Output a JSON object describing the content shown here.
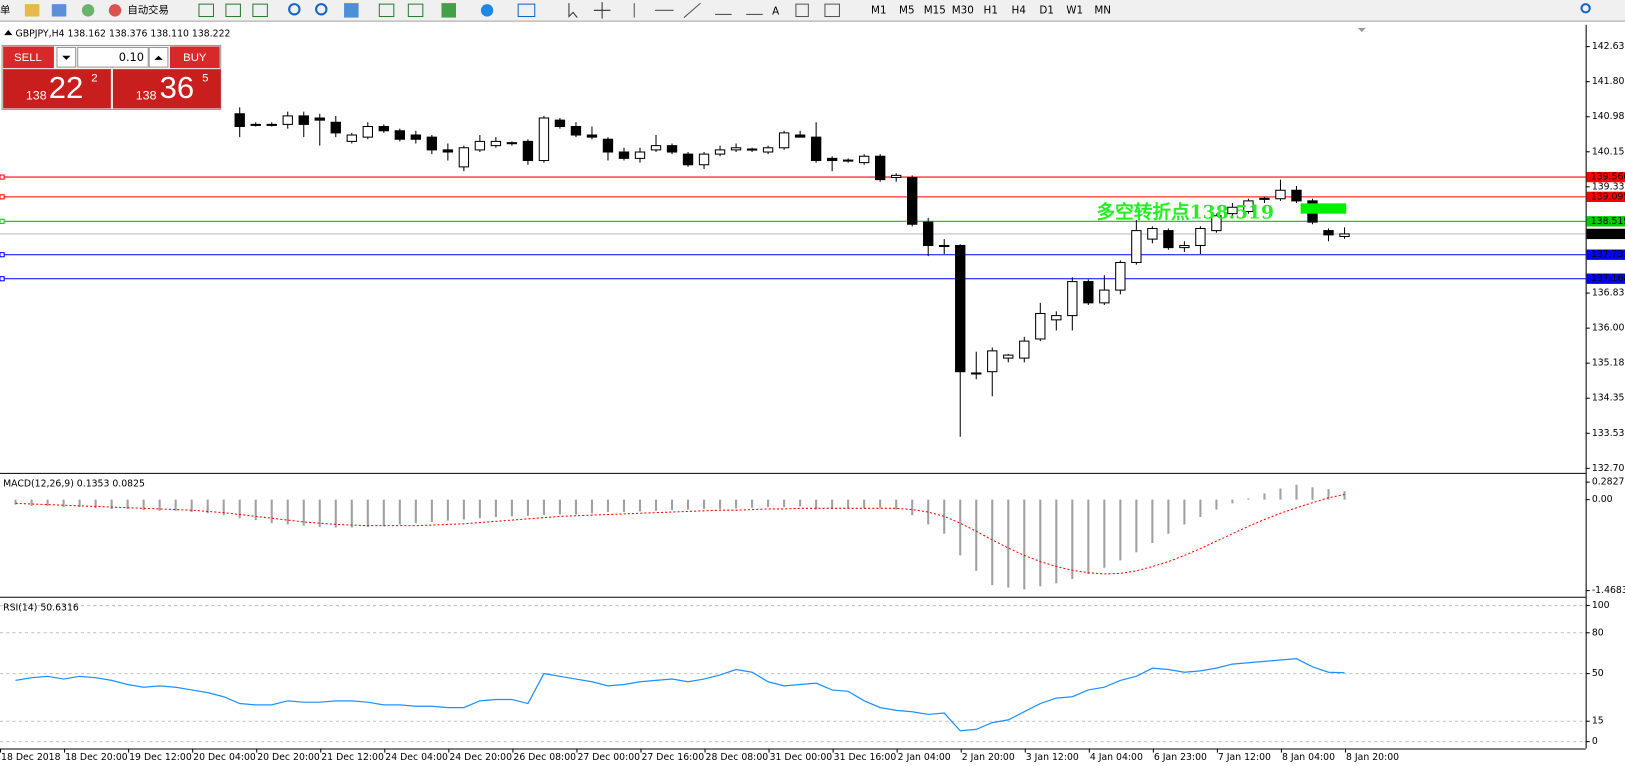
{
  "toolbar": {
    "items": [
      "单",
      "自动交易"
    ],
    "timeframes": [
      "M1",
      "M5",
      "M15",
      "M30",
      "H1",
      "H4",
      "D1",
      "W1",
      "MN"
    ]
  },
  "trade_panel": {
    "sell": "SELL",
    "buy": "BUY",
    "lots": "0.10",
    "sell_price": {
      "big": "138",
      "mid": "22",
      "small": "2"
    },
    "buy_price": {
      "big": "138",
      "mid": "36",
      "small": "5"
    }
  },
  "x_labels": [
    "18 Dec 2018",
    "18 Dec 20:00",
    "19 Dec 12:00",
    "20 Dec 04:00",
    "20 Dec 20:00",
    "21 Dec 12:00",
    "24 Dec 04:00",
    "24 Dec 20:00",
    "26 Dec 08:00",
    "27 Dec 00:00",
    "27 Dec 16:00",
    "28 Dec 08:00",
    "31 Dec 00:00",
    "31 Dec 16:00",
    "2 Jan 04:00",
    "2 Jan 20:00",
    "3 Jan 12:00",
    "4 Jan 04:00",
    "6 Jan 23:00",
    "7 Jan 12:00",
    "8 Jan 04:00",
    "8 Jan 20:00"
  ],
  "chart_data": [
    {
      "type": "candlestick",
      "title": "GBPJPY,H4  138.162 138.376 138.110 138.222",
      "ylim": [
        132.6,
        143.12
      ],
      "yticks": [
        {
          "value": 142.63,
          "label": "142.630"
        },
        141.805,
        {
          "value": 140.98,
          "label": "140.980"
        },
        140.155,
        {
          "value": 139.33,
          "label": "139.330"
        },
        {
          "value": 136.83,
          "label": "136.830"
        },
        136.005,
        {
          "value": 135.18,
          "label": "135.180"
        },
        134.355,
        {
          "value": 133.53,
          "label": "133.530"
        },
        132.705
      ],
      "lines": [
        {
          "value": 139.56,
          "label": "139.560",
          "color": "#ff0000"
        },
        {
          "value": 139.095,
          "label": "139.095",
          "color": "#ff0000"
        },
        {
          "value": 138.519,
          "label": "138.519",
          "color": "#00cc00"
        },
        {
          "value": 138.222,
          "label": "138.222",
          "color": "#000000"
        },
        {
          "value": 137.733,
          "label": "137.733",
          "color": "#0000ff"
        },
        {
          "value": 137.168,
          "label": "137.168",
          "color": "#0000ff"
        }
      ],
      "annotation": "多空转折点138.519",
      "candles": [
        null,
        null,
        null,
        null,
        null,
        null,
        null,
        null,
        null,
        null,
        null,
        null,
        null,
        null,
        [
          141.05,
          141.2,
          140.5,
          140.75
        ],
        [
          140.8,
          140.85,
          140.75,
          140.8
        ],
        [
          140.78,
          140.85,
          140.75,
          140.8
        ],
        [
          140.8,
          141.1,
          140.7,
          141.0
        ],
        [
          141.0,
          141.1,
          140.5,
          140.8
        ],
        [
          140.95,
          141.05,
          140.3,
          140.9
        ],
        [
          140.85,
          141.0,
          140.5,
          140.6
        ],
        [
          140.4,
          140.6,
          140.35,
          140.55
        ],
        [
          140.5,
          140.85,
          140.45,
          140.75
        ],
        [
          140.75,
          140.8,
          140.6,
          140.65
        ],
        [
          140.65,
          140.7,
          140.4,
          140.45
        ],
        [
          140.55,
          140.65,
          140.35,
          140.45
        ],
        [
          140.5,
          140.55,
          140.1,
          140.2
        ],
        [
          140.2,
          140.35,
          139.95,
          140.15
        ],
        [
          139.8,
          140.3,
          139.7,
          140.25
        ],
        [
          140.2,
          140.55,
          140.15,
          140.4
        ],
        [
          140.3,
          140.5,
          140.25,
          140.4
        ],
        [
          140.35,
          140.4,
          140.3,
          140.37
        ],
        [
          140.4,
          140.45,
          139.85,
          139.95
        ],
        [
          139.95,
          141.0,
          139.9,
          140.95
        ],
        [
          140.9,
          140.95,
          140.7,
          140.75
        ],
        [
          140.75,
          140.85,
          140.5,
          140.55
        ],
        [
          140.55,
          140.75,
          140.45,
          140.5
        ],
        [
          140.45,
          140.5,
          139.95,
          140.15
        ],
        [
          140.15,
          140.25,
          139.95,
          140.0
        ],
        [
          140.0,
          140.25,
          139.9,
          140.15
        ],
        [
          140.2,
          140.55,
          140.15,
          140.3
        ],
        [
          140.3,
          140.35,
          140.1,
          140.15
        ],
        [
          140.1,
          140.15,
          139.8,
          139.85
        ],
        [
          139.85,
          140.15,
          139.75,
          140.1
        ],
        [
          140.1,
          140.3,
          140.05,
          140.2
        ],
        [
          140.2,
          140.35,
          140.15,
          140.25
        ],
        [
          140.2,
          140.25,
          140.15,
          140.22
        ],
        [
          140.15,
          140.3,
          140.1,
          140.25
        ],
        [
          140.25,
          140.65,
          140.2,
          140.6
        ],
        [
          140.55,
          140.65,
          140.5,
          140.5
        ],
        [
          140.5,
          140.85,
          139.9,
          139.95
        ],
        [
          140.0,
          140.05,
          139.7,
          139.95
        ],
        [
          139.95,
          140.0,
          139.9,
          139.96
        ],
        [
          139.9,
          140.1,
          139.85,
          140.05
        ],
        [
          140.05,
          140.1,
          139.45,
          139.5
        ],
        [
          139.55,
          139.65,
          139.45,
          139.6
        ],
        [
          139.55,
          139.6,
          138.4,
          138.45
        ],
        [
          138.5,
          138.6,
          137.7,
          137.95
        ],
        [
          137.95,
          138.1,
          137.75,
          137.95
        ],
        [
          137.95,
          137.98,
          133.45,
          134.98
        ],
        [
          134.95,
          135.45,
          134.8,
          134.95
        ],
        [
          134.98,
          135.55,
          134.4,
          135.47
        ],
        [
          135.3,
          135.4,
          135.2,
          135.37
        ],
        [
          135.3,
          135.8,
          135.2,
          135.7
        ],
        [
          135.75,
          136.6,
          135.7,
          136.35
        ],
        [
          136.2,
          136.4,
          135.95,
          136.3
        ],
        [
          136.3,
          137.2,
          135.95,
          137.1
        ],
        [
          137.1,
          137.15,
          136.55,
          136.6
        ],
        [
          136.6,
          137.25,
          136.55,
          136.9
        ],
        [
          136.9,
          137.6,
          136.8,
          137.55
        ],
        [
          137.55,
          138.55,
          137.5,
          138.3
        ],
        [
          138.1,
          138.4,
          138.0,
          138.35
        ],
        [
          138.3,
          138.35,
          137.85,
          137.9
        ],
        [
          137.9,
          138.05,
          137.8,
          137.95
        ],
        [
          137.95,
          138.4,
          137.75,
          138.35
        ],
        [
          138.3,
          138.7,
          138.25,
          138.65
        ],
        [
          138.7,
          138.95,
          138.65,
          138.85
        ],
        [
          138.75,
          139.05,
          138.7,
          139.0
        ],
        [
          139.05,
          139.1,
          138.95,
          139.06
        ],
        [
          139.05,
          139.5,
          139.0,
          139.25
        ],
        [
          139.25,
          139.35,
          138.95,
          139.0
        ],
        [
          139.0,
          139.05,
          138.45,
          138.5
        ],
        [
          138.3,
          138.35,
          138.05,
          138.2
        ],
        [
          138.162,
          138.376,
          138.11,
          138.222
        ]
      ]
    },
    {
      "type": "macd",
      "title": "MACD(12,26,9) 0.1353 0.0825",
      "ylim": [
        -1.55,
        0.4
      ],
      "yticks": [
        0.2827,
        {
          "value": 0,
          "label": "0.00"
        },
        -1.4683
      ],
      "histogram_color": "#a0a0a0",
      "signal_color": "#ff0000",
      "histogram": [
        -0.08,
        -0.1,
        -0.1,
        -0.12,
        -0.12,
        -0.14,
        -0.15,
        -0.15,
        -0.17,
        -0.18,
        -0.18,
        -0.2,
        -0.22,
        -0.25,
        -0.3,
        -0.33,
        -0.38,
        -0.4,
        -0.42,
        -0.44,
        -0.45,
        -0.45,
        -0.44,
        -0.43,
        -0.4,
        -0.38,
        -0.36,
        -0.34,
        -0.32,
        -0.3,
        -0.28,
        -0.27,
        -0.26,
        -0.25,
        -0.24,
        -0.24,
        -0.22,
        -0.2,
        -0.2,
        -0.19,
        -0.18,
        -0.17,
        -0.16,
        -0.15,
        -0.15,
        -0.14,
        -0.13,
        -0.12,
        -0.12,
        -0.11,
        -0.16,
        -0.15,
        -0.14,
        -0.14,
        -0.13,
        -0.16,
        -0.25,
        -0.4,
        -0.55,
        -0.9,
        -1.15,
        -1.38,
        -1.42,
        -1.45,
        -1.4,
        -1.35,
        -1.28,
        -1.2,
        -1.1,
        -0.98,
        -0.85,
        -0.7,
        -0.55,
        -0.4,
        -0.28,
        -0.16,
        -0.06,
        0.02,
        0.1,
        0.18,
        0.24,
        0.2,
        0.17,
        0.1353
      ],
      "signal": [
        -0.06,
        -0.07,
        -0.08,
        -0.09,
        -0.1,
        -0.11,
        -0.12,
        -0.13,
        -0.14,
        -0.15,
        -0.16,
        -0.17,
        -0.19,
        -0.21,
        -0.24,
        -0.27,
        -0.3,
        -0.33,
        -0.36,
        -0.38,
        -0.4,
        -0.41,
        -0.42,
        -0.42,
        -0.42,
        -0.42,
        -0.41,
        -0.4,
        -0.39,
        -0.37,
        -0.35,
        -0.33,
        -0.31,
        -0.29,
        -0.27,
        -0.26,
        -0.25,
        -0.24,
        -0.23,
        -0.22,
        -0.21,
        -0.2,
        -0.19,
        -0.18,
        -0.17,
        -0.17,
        -0.16,
        -0.15,
        -0.15,
        -0.14,
        -0.14,
        -0.14,
        -0.14,
        -0.14,
        -0.14,
        -0.14,
        -0.16,
        -0.2,
        -0.27,
        -0.38,
        -0.51,
        -0.65,
        -0.78,
        -0.9,
        -1.0,
        -1.08,
        -1.14,
        -1.18,
        -1.2,
        -1.19,
        -1.15,
        -1.08,
        -1.0,
        -0.9,
        -0.79,
        -0.67,
        -0.55,
        -0.43,
        -0.32,
        -0.22,
        -0.13,
        -0.05,
        0.03,
        0.0825
      ]
    },
    {
      "type": "line",
      "title": "RSI(14) 50.6316",
      "color": "#1e90ff",
      "ylim": [
        -5,
        105
      ],
      "yticks": [
        100,
        80,
        50,
        15,
        0
      ],
      "values": [
        45,
        47,
        48,
        46,
        48,
        47,
        45,
        42,
        40,
        41,
        40,
        38,
        36,
        33,
        28,
        27,
        27,
        30,
        29,
        29,
        30,
        30,
        29,
        27,
        27,
        26,
        26,
        25,
        25,
        30,
        31,
        31,
        28,
        50,
        48,
        46,
        44,
        41,
        42,
        44,
        45,
        46,
        44,
        46,
        49,
        53,
        51,
        44,
        41,
        42,
        43,
        38,
        37,
        30,
        25,
        23,
        22,
        20,
        21,
        8,
        9,
        14,
        16,
        22,
        28,
        32,
        33,
        38,
        40,
        45,
        48,
        54,
        53,
        51,
        52,
        54,
        57,
        58,
        59,
        60,
        61,
        55,
        51,
        50.6316
      ]
    }
  ]
}
